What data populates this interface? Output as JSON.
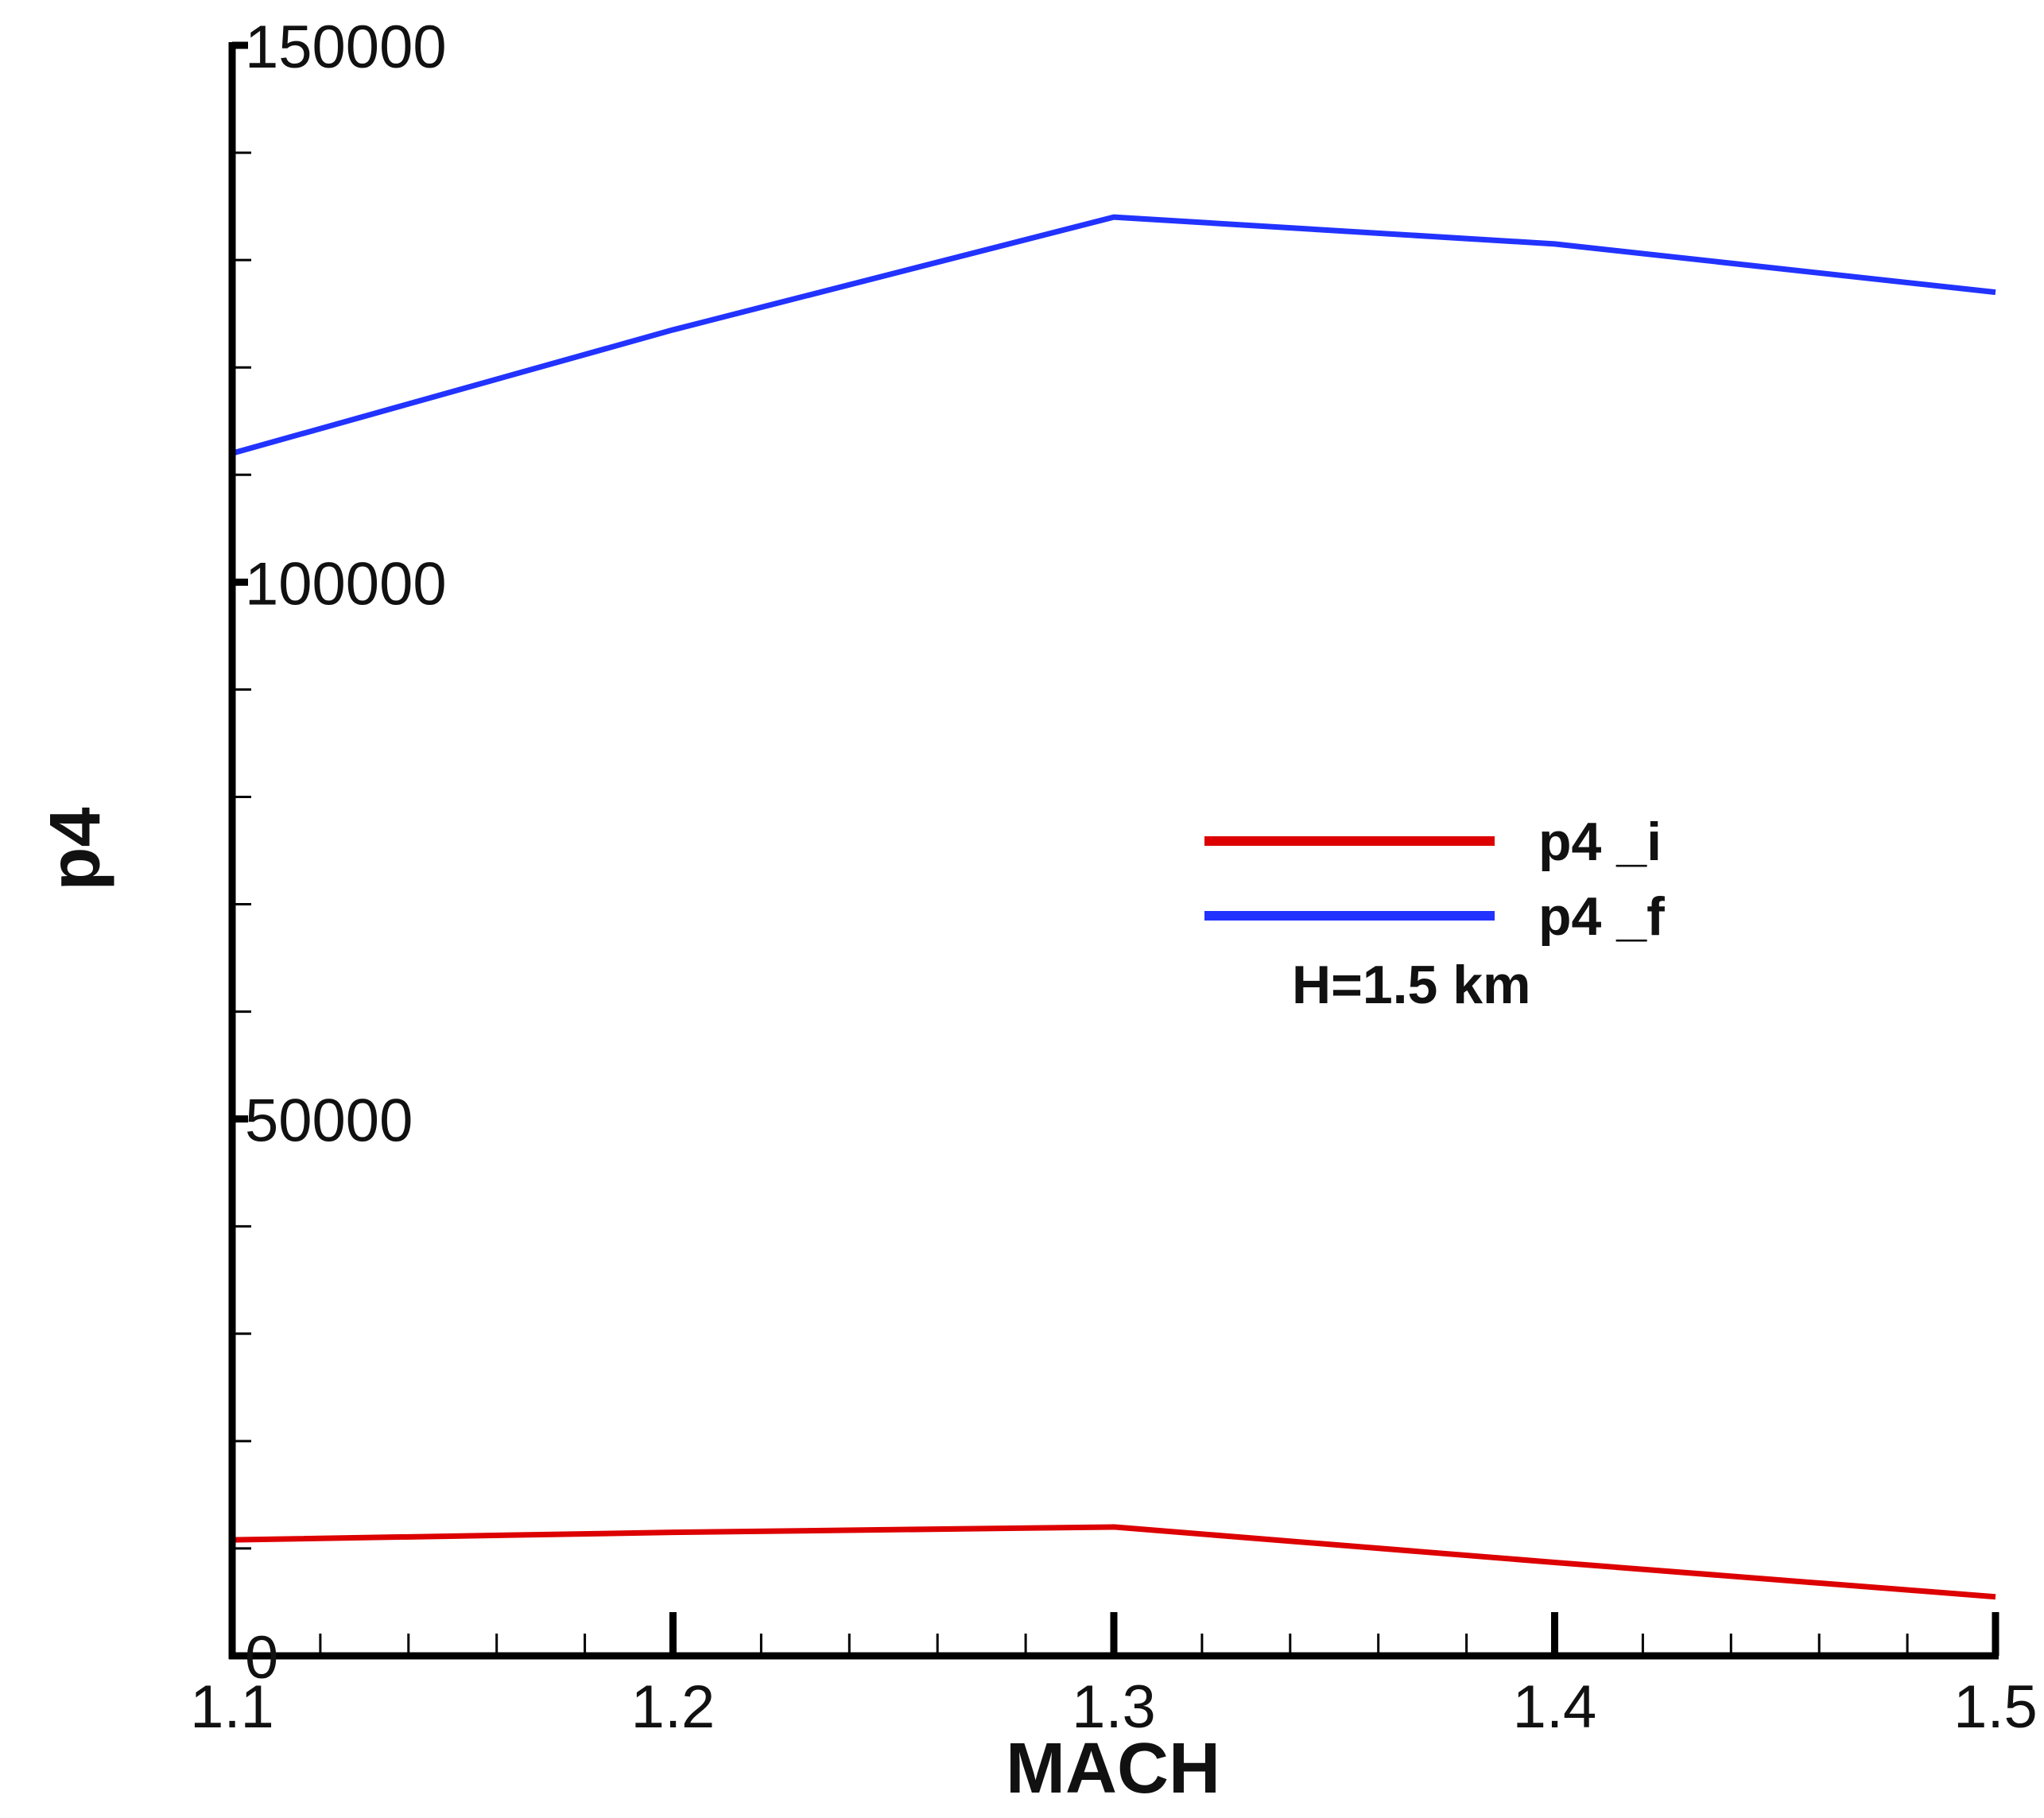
{
  "chart_data": {
    "type": "line",
    "xlabel": "MACH",
    "ylabel": "p4",
    "xlim": [
      1.1,
      1.5
    ],
    "ylim": [
      0,
      150000
    ],
    "x_ticks": [
      "1.1",
      "1.2",
      "1.3",
      "1.4",
      "1.5"
    ],
    "y_ticks": [
      "0",
      "50000",
      "100000",
      "150000"
    ],
    "x_tick_values": [
      1.1,
      1.2,
      1.3,
      1.4,
      1.5
    ],
    "y_tick_values": [
      0,
      50000,
      100000,
      150000
    ],
    "x_minor_step": 0.02,
    "y_minor_step": 10000,
    "grid": false,
    "legend_position": "center-right",
    "annotation": "H=1.5 km",
    "series": [
      {
        "name": "p4  _i",
        "color": "#dd0000",
        "x": [
          1.1,
          1.2,
          1.3,
          1.4,
          1.5
        ],
        "y": [
          10800,
          11500,
          12000,
          8700,
          5500
        ]
      },
      {
        "name": "p4  _f",
        "color": "#2233ff",
        "x": [
          1.1,
          1.2,
          1.3,
          1.4,
          1.5
        ],
        "y": [
          112000,
          123500,
          134000,
          131500,
          127000
        ]
      }
    ]
  }
}
